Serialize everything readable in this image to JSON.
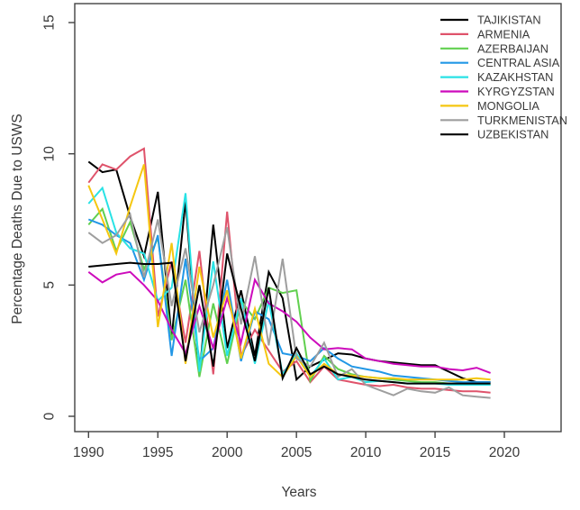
{
  "figure": {
    "xlabel": "Years",
    "ylabel": "Percentage Deaths Due to USWS"
  },
  "chart_data": {
    "type": "line",
    "title": "",
    "xlabel": "Years",
    "ylabel": "Percentage Deaths Due to USWS",
    "x_ticks": [
      1990,
      1995,
      2000,
      2005,
      2010,
      2015,
      2020
    ],
    "y_ticks": [
      0,
      5,
      10,
      15
    ],
    "xlim": [
      1989,
      2024
    ],
    "ylim": [
      0,
      15.6
    ],
    "grid": false,
    "legend_position": "top-right",
    "axis_color": "#424242",
    "text_color": "#3a3a3a",
    "x": [
      1990,
      1991,
      1992,
      1993,
      1994,
      1995,
      1996,
      1997,
      1998,
      1999,
      2000,
      2001,
      2002,
      2003,
      2004,
      2005,
      2006,
      2007,
      2008,
      2009,
      2010,
      2011,
      2012,
      2013,
      2014,
      2015,
      2016,
      2017,
      2018,
      2019
    ],
    "series": [
      {
        "name": "TAJIKISTAN",
        "color": "#000000",
        "values": [
          9.7,
          9.3,
          9.4,
          7.6,
          6.1,
          8.55,
          3.0,
          8.2,
          1.55,
          7.3,
          2.6,
          4.8,
          2.3,
          5.5,
          4.5,
          1.4,
          1.9,
          2.15,
          2.4,
          2.35,
          2.2,
          2.1,
          2.05,
          2.0,
          1.95,
          1.95,
          1.7,
          1.45,
          1.3,
          1.3
        ]
      },
      {
        "name": "ARMENIA",
        "color": "#DF536B",
        "values": [
          8.9,
          9.6,
          9.4,
          9.9,
          10.2,
          3.8,
          5.9,
          2.8,
          6.3,
          1.6,
          7.8,
          2.3,
          3.3,
          2.5,
          1.7,
          2.1,
          1.3,
          1.9,
          1.4,
          1.3,
          1.2,
          1.15,
          1.2,
          1.1,
          1.05,
          1.05,
          1.0,
          0.95,
          0.95,
          0.9
        ]
      },
      {
        "name": "AZERBAIJAN",
        "color": "#61D04F",
        "values": [
          7.3,
          7.9,
          6.3,
          7.4,
          5.6,
          6.8,
          2.9,
          5.2,
          1.5,
          4.3,
          2.0,
          4.4,
          3.7,
          4.9,
          4.7,
          4.8,
          1.35,
          2.3,
          1.8,
          1.6,
          1.5,
          1.45,
          1.4,
          1.35,
          1.3,
          1.3,
          1.25,
          1.25,
          1.2,
          1.2
        ]
      },
      {
        "name": "CENTRAL ASIA",
        "color": "#2297E6",
        "values": [
          7.5,
          7.3,
          6.9,
          6.6,
          5.2,
          6.9,
          2.3,
          6.0,
          2.1,
          2.6,
          5.2,
          2.1,
          4.0,
          3.7,
          2.4,
          2.3,
          2.1,
          2.6,
          2.2,
          1.9,
          1.8,
          1.7,
          1.55,
          1.5,
          1.45,
          1.4,
          1.35,
          1.3,
          1.3,
          1.3
        ]
      },
      {
        "name": "KAZAKHSTAN",
        "color": "#28E2E5",
        "values": [
          8.1,
          8.7,
          7.0,
          6.4,
          6.2,
          4.4,
          4.9,
          8.5,
          1.7,
          5.9,
          2.3,
          4.5,
          2.0,
          4.4,
          1.6,
          2.4,
          1.5,
          2.2,
          1.4,
          1.5,
          1.3,
          1.35,
          1.3,
          1.25,
          1.25,
          1.25,
          1.2,
          1.2,
          1.2,
          1.2
        ]
      },
      {
        "name": "KYRGYZSTAN",
        "color": "#CD0BBC",
        "values": [
          5.5,
          5.1,
          5.4,
          5.5,
          5.0,
          4.4,
          3.3,
          2.4,
          4.2,
          2.6,
          4.5,
          2.8,
          5.2,
          4.3,
          4.0,
          3.6,
          3.0,
          2.55,
          2.6,
          2.55,
          2.2,
          2.1,
          2.0,
          1.95,
          1.9,
          1.9,
          1.8,
          1.75,
          1.85,
          1.65
        ]
      },
      {
        "name": "MONGOLIA",
        "color": "#F5C710",
        "values": [
          8.8,
          7.5,
          6.2,
          8.0,
          9.6,
          3.4,
          6.6,
          2.0,
          5.7,
          3.0,
          4.8,
          2.2,
          4.1,
          2.0,
          1.5,
          2.3,
          1.5,
          2.0,
          1.6,
          1.55,
          1.5,
          1.45,
          1.45,
          1.4,
          1.4,
          1.4,
          1.4,
          1.4,
          1.45,
          1.4
        ]
      },
      {
        "name": "TURKMENISTAN",
        "color": "#9E9E9E",
        "values": [
          7.0,
          6.6,
          6.9,
          7.7,
          5.3,
          7.5,
          4.2,
          6.4,
          3.2,
          5.0,
          7.2,
          3.5,
          6.1,
          2.7,
          6.0,
          2.2,
          1.9,
          2.8,
          1.5,
          1.8,
          1.2,
          1.0,
          0.8,
          1.05,
          0.95,
          0.9,
          1.1,
          0.8,
          0.75,
          0.7
        ]
      },
      {
        "name": "UZBEKISTAN",
        "color": "#000000",
        "values": [
          5.7,
          5.75,
          5.8,
          5.85,
          5.8,
          5.8,
          5.85,
          2.1,
          5.0,
          1.9,
          6.2,
          4.1,
          2.1,
          4.9,
          1.45,
          2.6,
          1.6,
          1.9,
          1.6,
          1.5,
          1.4,
          1.35,
          1.3,
          1.25,
          1.25,
          1.25,
          1.25,
          1.25,
          1.25,
          1.25
        ]
      }
    ]
  }
}
